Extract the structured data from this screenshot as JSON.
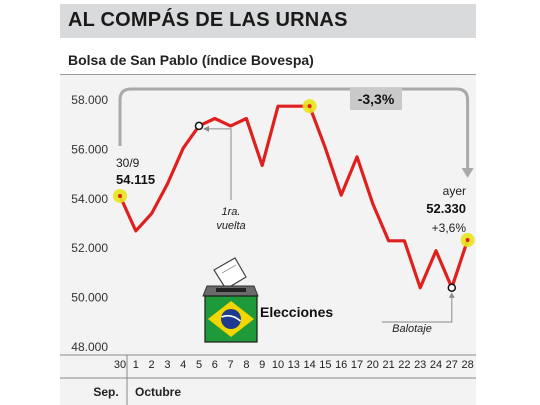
{
  "header": {
    "title": "AL COMPÁS DE LAS URNAS",
    "subtitle": "Bolsa de San Pablo (índice Bovespa)"
  },
  "chart_data": {
    "type": "line",
    "title": "AL COMPÁS DE LAS URNAS",
    "subtitle": "Bolsa de San Pablo (índice Bovespa)",
    "y_ticks": [
      "58.000",
      "56.000",
      "54.000",
      "52.000",
      "50.000",
      "48.000"
    ],
    "y_tick_values": [
      58000,
      56000,
      54000,
      52000,
      50000,
      48000
    ],
    "ylim": [
      48000,
      58900
    ],
    "x_ticks": [
      "30",
      "1",
      "2",
      "3",
      "4",
      "5",
      "6",
      "7",
      "8",
      "9",
      "10",
      "13",
      "14",
      "15",
      "16",
      "17",
      "20",
      "21",
      "22",
      "23",
      "24",
      "27",
      "28"
    ],
    "month_labels": [
      "Sep.",
      "Octubre"
    ],
    "series": [
      {
        "values": [
          54115,
          52700,
          53400,
          54600,
          56050,
          56950,
          57250,
          56950,
          57250,
          55350,
          57750,
          57750,
          57750,
          56050,
          54150,
          55700,
          53800,
          52300,
          52300,
          50400,
          51900,
          50400,
          52330
        ]
      }
    ],
    "colors": {
      "line": "#e01f1f",
      "highlight": "#e8e41a",
      "accent_text": "#111111"
    },
    "annotations": {
      "start_date": "30/9",
      "start_value": "54.115",
      "end_label": "ayer",
      "end_value": "52.330",
      "end_change": "+3,6%",
      "range_change": "-3,3%",
      "first_round_line1": "1ra.",
      "first_round_line2": "vuelta",
      "runoff": "Balotaje",
      "elections": "Elecciones"
    },
    "icons": [
      "ballot-box-icon",
      "brazil-flag-icon"
    ]
  }
}
